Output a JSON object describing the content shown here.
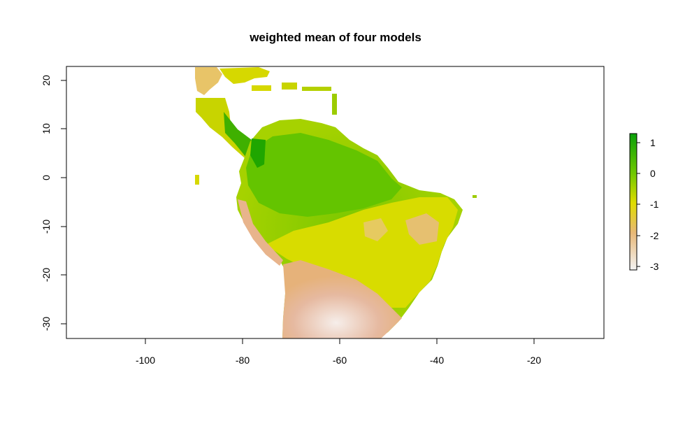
{
  "map": {
    "title": "weighted mean of four models",
    "x_axis": {
      "range": [
        -117,
        -6
      ],
      "ticks": [
        -100,
        -80,
        -60,
        -40,
        -20
      ],
      "tick_labels": [
        "-100",
        "-80",
        "-60",
        "-40",
        "-20"
      ]
    },
    "y_axis": {
      "range": [
        -33,
        23
      ],
      "ticks": [
        20,
        10,
        0,
        -10,
        -20,
        -30
      ],
      "tick_labels": [
        "20",
        "10",
        "0",
        "-10",
        "-20",
        "-30"
      ]
    },
    "legend": {
      "ticks": [
        1,
        0,
        -1,
        -2,
        -3
      ],
      "tick_labels": [
        "1",
        "0",
        "-1",
        "-2",
        "-3"
      ],
      "range": [
        -3.2,
        1.3
      ],
      "colors": {
        "1.3": "#0aa00a",
        "0": "#6fc800",
        "-1": "#e0dc00",
        "-2": "#e8b878",
        "-3.2": "#f2f2f2"
      }
    },
    "region": "Latin America (Mexico to northern Argentina)"
  }
}
